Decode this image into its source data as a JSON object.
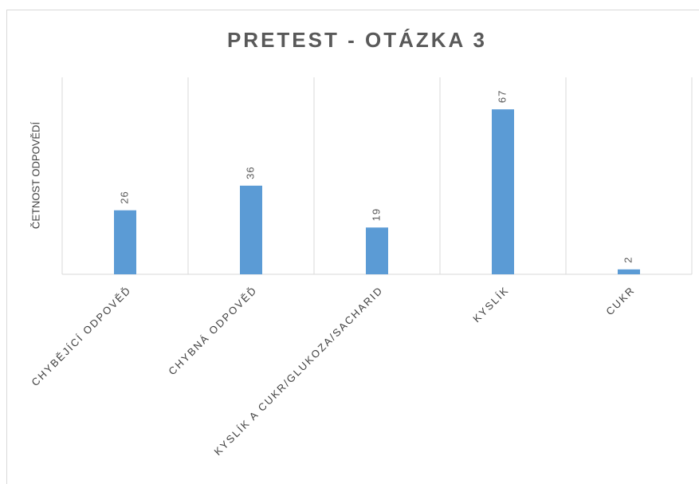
{
  "chart_data": {
    "type": "bar",
    "title": "PRETEST - OTÁZKA 3",
    "y_label": "ČETNOST ODPOVĚDÍ",
    "categories": [
      "CHYBĚJÍCÍ ODPOVĚĎ",
      "CHYBNÁ ODPOVĚĎ",
      "KYSLÍK A CUKR/GLUKOZA/SACHARID",
      "KYSLÍK",
      "CUKR"
    ],
    "values": [
      26,
      36,
      19,
      67,
      2
    ],
    "color": "#5b9bd5",
    "ylim": [
      0,
      80
    ],
    "grid": true
  }
}
